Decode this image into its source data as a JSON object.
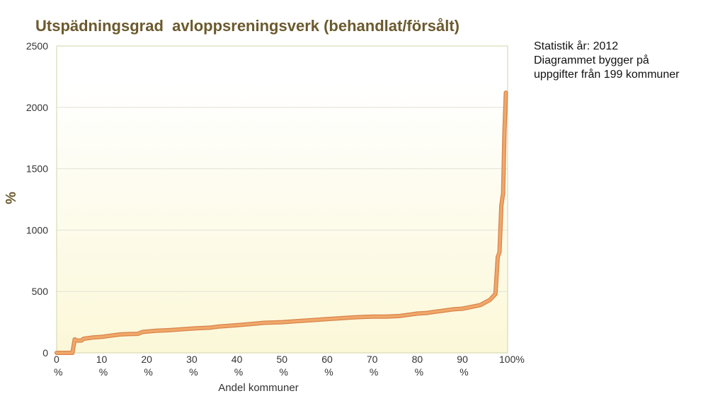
{
  "notes": [
    "Statistik år: 2012",
    "Diagrammet bygger på",
    "uppgifter från 199 kommuner"
  ],
  "colors": {
    "line": "#f0a86a",
    "line_edge": "#d9844a",
    "plot_bg_top": "#ffffff",
    "plot_bg_bottom": "#fbf8d8",
    "grid": "#e2e2d8",
    "border": "#cfd6a8",
    "title": "#6b5a2e"
  },
  "chart_data": {
    "type": "line",
    "title": "Utspädningsgrad  avloppsreningsverk (behandlat/försålt)",
    "xlabel": "Andel kommuner",
    "ylabel": "%",
    "xlim": [
      0,
      100
    ],
    "ylim": [
      0,
      2500
    ],
    "grid": true,
    "yticks": [
      0,
      500,
      1000,
      1500,
      2000,
      2500
    ],
    "xticks": [
      {
        "value": 0,
        "line1": "0",
        "line2": "%"
      },
      {
        "value": 10,
        "line1": "10",
        "line2": "%"
      },
      {
        "value": 20,
        "line1": "20",
        "line2": "%"
      },
      {
        "value": 30,
        "line1": "30",
        "line2": "%"
      },
      {
        "value": 40,
        "line1": "40",
        "line2": "%"
      },
      {
        "value": 50,
        "line1": "50",
        "line2": "%"
      },
      {
        "value": 60,
        "line1": "60",
        "line2": "%"
      },
      {
        "value": 70,
        "line1": "70",
        "line2": "%"
      },
      {
        "value": 80,
        "line1": "80",
        "line2": "%"
      },
      {
        "value": 90,
        "line1": "90",
        "line2": "%"
      },
      {
        "value": 100,
        "line1": "100%",
        "line2": ""
      }
    ],
    "series": [
      {
        "x": [
          0,
          3.5,
          4.0,
          4.5,
          5.5,
          6.0,
          8,
          10,
          12,
          14,
          16,
          18,
          19,
          22,
          25,
          28,
          31,
          34,
          36,
          40,
          43,
          46,
          50,
          53,
          56,
          60,
          63,
          66,
          70,
          73,
          76,
          78,
          80,
          82,
          84,
          86,
          88,
          90,
          92,
          94,
          95,
          96,
          96.8,
          97.3,
          97.8,
          98.2,
          98.6,
          99.0,
          99.3,
          99.6
        ],
        "y": [
          0,
          0,
          110,
          100,
          100,
          115,
          125,
          130,
          140,
          150,
          153,
          155,
          170,
          180,
          185,
          193,
          200,
          205,
          215,
          225,
          235,
          245,
          250,
          258,
          265,
          275,
          282,
          290,
          295,
          295,
          300,
          310,
          320,
          325,
          335,
          345,
          355,
          360,
          375,
          390,
          410,
          430,
          460,
          480,
          780,
          820,
          1200,
          1300,
          1800,
          2120
        ]
      }
    ]
  }
}
